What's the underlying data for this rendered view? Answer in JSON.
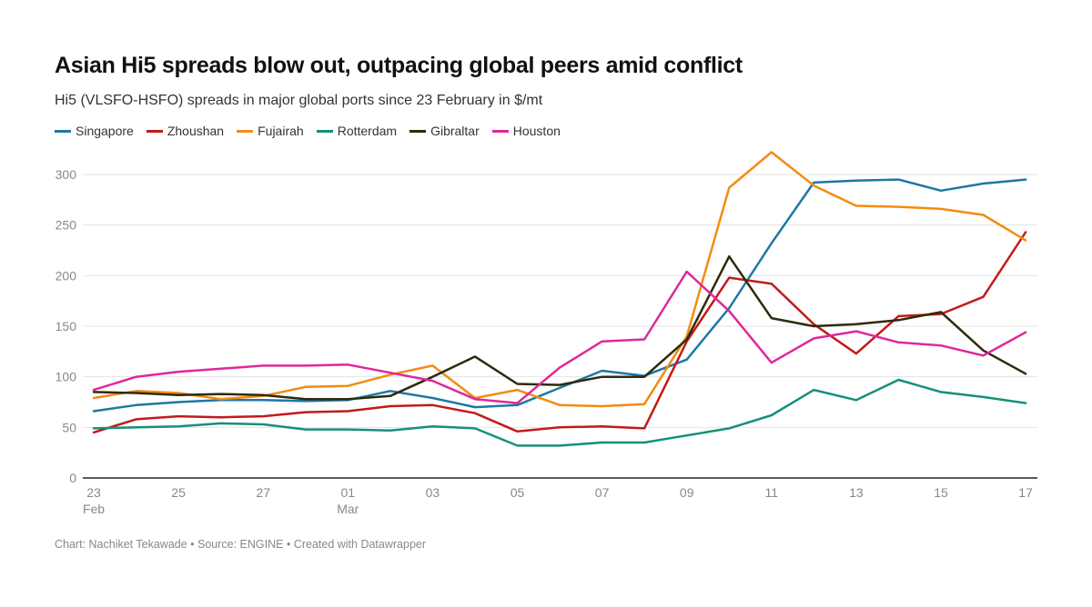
{
  "chart_data": {
    "type": "line",
    "title": "Asian Hi5 spreads blow out, outpacing global peers amid conflict",
    "subtitle": "Hi5 (VLSFO-HSFO) spreads in major global ports since 23 February in $/mt",
    "xlabel": "",
    "ylabel": "",
    "ylim": [
      0,
      300
    ],
    "yticks": [
      0,
      50,
      100,
      150,
      200,
      250,
      300
    ],
    "grid": true,
    "legend_position": "top-left",
    "x": [
      "Feb 23",
      "Feb 24",
      "Feb 25",
      "Feb 26",
      "Feb 27",
      "Feb 28",
      "Mar 01",
      "Mar 02",
      "Mar 03",
      "Mar 04",
      "Mar 05",
      "Mar 06",
      "Mar 07",
      "Mar 08",
      "Mar 09",
      "Mar 10",
      "Mar 11",
      "Mar 12",
      "Mar 13",
      "Mar 14",
      "Mar 15",
      "Mar 16",
      "Mar 17"
    ],
    "xticks": [
      {
        "index": 0,
        "label": "23",
        "sublabel": "Feb"
      },
      {
        "index": 2,
        "label": "25",
        "sublabel": ""
      },
      {
        "index": 4,
        "label": "27",
        "sublabel": ""
      },
      {
        "index": 6,
        "label": "01",
        "sublabel": "Mar"
      },
      {
        "index": 8,
        "label": "03",
        "sublabel": ""
      },
      {
        "index": 10,
        "label": "05",
        "sublabel": ""
      },
      {
        "index": 12,
        "label": "07",
        "sublabel": ""
      },
      {
        "index": 14,
        "label": "09",
        "sublabel": ""
      },
      {
        "index": 16,
        "label": "11",
        "sublabel": ""
      },
      {
        "index": 18,
        "label": "13",
        "sublabel": ""
      },
      {
        "index": 20,
        "label": "15",
        "sublabel": ""
      },
      {
        "index": 22,
        "label": "17",
        "sublabel": ""
      }
    ],
    "series": [
      {
        "name": "Singapore",
        "color": "#1d78a4",
        "values": [
          66,
          72,
          75,
          77,
          77,
          76,
          77,
          86,
          79,
          70,
          72,
          89,
          106,
          101,
          117,
          168,
          232,
          292,
          294,
          295,
          284,
          291,
          295
        ]
      },
      {
        "name": "Zhoushan",
        "color": "#c21a1a",
        "values": [
          45,
          58,
          61,
          60,
          61,
          65,
          66,
          71,
          72,
          64,
          46,
          50,
          51,
          49,
          135,
          198,
          192,
          152,
          123,
          160,
          162,
          179,
          243
        ]
      },
      {
        "name": "Fujairah",
        "color": "#f28c12",
        "values": [
          79,
          86,
          84,
          78,
          81,
          90,
          91,
          102,
          111,
          79,
          87,
          72,
          71,
          73,
          140,
          287,
          322,
          289,
          269,
          268,
          266,
          260,
          235
        ]
      },
      {
        "name": "Rotterdam",
        "color": "#15907a",
        "values": [
          49,
          50,
          51,
          54,
          53,
          48,
          48,
          47,
          51,
          49,
          32,
          32,
          35,
          35,
          42,
          49,
          62,
          87,
          77,
          97,
          85,
          80,
          74
        ]
      },
      {
        "name": "Gibraltar",
        "color": "#2e2a0e",
        "values": [
          85,
          84,
          82,
          83,
          82,
          78,
          78,
          81,
          100,
          120,
          93,
          92,
          100,
          100,
          137,
          219,
          158,
          150,
          152,
          156,
          164,
          126,
          103
        ]
      },
      {
        "name": "Houston",
        "color": "#e0279a",
        "values": [
          87,
          100,
          105,
          108,
          111,
          111,
          112,
          104,
          96,
          78,
          74,
          109,
          135,
          137,
          204,
          165,
          114,
          138,
          145,
          134,
          131,
          121,
          144
        ]
      }
    ]
  },
  "footer": "Chart: Nachiket Tekawade • Source: ENGINE • Created with Datawrapper"
}
